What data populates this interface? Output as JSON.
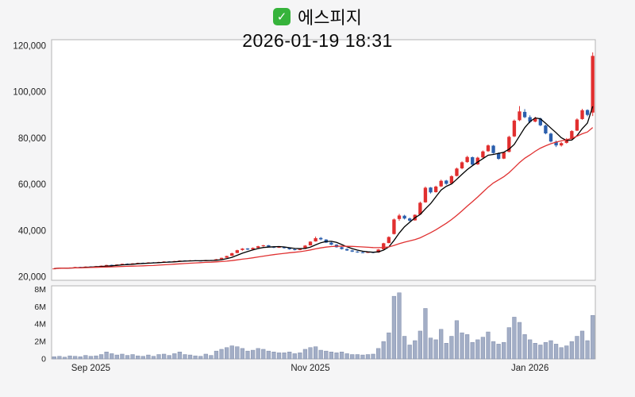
{
  "header": {
    "title": "에스피지",
    "datetime": "2026-01-19 18:31",
    "check_glyph": "✓"
  },
  "colors": {
    "background": "#f5f5f6",
    "panel_background": "#ffffff",
    "panel_border": "#b4b4b4",
    "check_green": "#36b33b",
    "axis_text": "#222222"
  },
  "chart_data": {
    "type": "candlestick",
    "title": "에스피지",
    "subtitle": "2026-01-19 18:31",
    "x_tick_labels": [
      {
        "label": "Sep 2025",
        "index": 7
      },
      {
        "label": "Nov 2025",
        "index": 49
      },
      {
        "label": "Jan 2026",
        "index": 91
      }
    ],
    "price_axis": {
      "ticks": [
        20000,
        40000,
        60000,
        80000,
        100000,
        120000
      ],
      "min": 18500,
      "max": 122500
    },
    "volume_axis": {
      "ticks": [
        0,
        2000000,
        4000000,
        6000000,
        8000000
      ],
      "tick_labels": [
        "0",
        "2M",
        "4M",
        "6M",
        "8M"
      ],
      "min": 0,
      "max": 8400000
    },
    "moving_averages": [
      {
        "name": "ma-short",
        "window": 5,
        "color": "#000000"
      },
      {
        "name": "ma-long",
        "window": 20,
        "color": "#e03131"
      }
    ],
    "up_color": "#e12f2f",
    "down_color": "#2b5fad",
    "volume_color": "#a3aec6",
    "volume_edge_color": "#7f8cab",
    "legend_position": "none",
    "grid": false,
    "ohlc": [
      [
        23400,
        23700,
        23300,
        23600
      ],
      [
        23600,
        23900,
        23500,
        23800
      ],
      [
        23850,
        23950,
        23600,
        23700
      ],
      [
        23700,
        24100,
        23650,
        24000
      ],
      [
        24050,
        24300,
        23900,
        24200
      ],
      [
        24250,
        24350,
        24000,
        24100
      ],
      [
        24100,
        24500,
        24050,
        24400
      ],
      [
        24450,
        24550,
        24200,
        24300
      ],
      [
        24300,
        24700,
        24250,
        24600
      ],
      [
        24650,
        24900,
        24500,
        24800
      ],
      [
        24850,
        25200,
        24700,
        25100
      ],
      [
        25150,
        25250,
        24900,
        25000
      ],
      [
        25000,
        25400,
        24950,
        25300
      ],
      [
        25350,
        25700,
        25200,
        25600
      ],
      [
        25650,
        25750,
        25400,
        25500
      ],
      [
        25500,
        25900,
        25450,
        25800
      ],
      [
        25850,
        26100,
        25700,
        26000
      ],
      [
        26050,
        26150,
        25800,
        25900
      ],
      [
        25900,
        26300,
        25850,
        26200
      ],
      [
        26250,
        26350,
        26000,
        26100
      ],
      [
        26100,
        26500,
        26050,
        26400
      ],
      [
        26450,
        26700,
        26300,
        26600
      ],
      [
        26650,
        26750,
        26400,
        26500
      ],
      [
        26500,
        26900,
        26450,
        26800
      ],
      [
        26850,
        27100,
        26700,
        27000
      ],
      [
        27050,
        27150,
        26800,
        26900
      ],
      [
        26900,
        27250,
        26850,
        27100
      ],
      [
        27100,
        27200,
        26900,
        27000
      ],
      [
        27000,
        27100,
        26700,
        26800
      ],
      [
        26800,
        27300,
        26750,
        27200
      ],
      [
        27250,
        27350,
        27000,
        27100
      ],
      [
        27150,
        27700,
        27100,
        27600
      ],
      [
        27650,
        28300,
        27600,
        28200
      ],
      [
        28250,
        29100,
        28200,
        29000
      ],
      [
        29100,
        30400,
        29000,
        30200
      ],
      [
        30300,
        31700,
        30200,
        31500
      ],
      [
        31600,
        32400,
        31300,
        32200
      ],
      [
        32250,
        32400,
        31600,
        31800
      ],
      [
        31850,
        32700,
        31800,
        32500
      ],
      [
        32550,
        33400,
        32400,
        33200
      ],
      [
        33250,
        33800,
        33000,
        33600
      ],
      [
        33650,
        33750,
        32900,
        33100
      ],
      [
        33100,
        33250,
        32400,
        32600
      ],
      [
        32600,
        33100,
        32500,
        32900
      ],
      [
        32900,
        33000,
        32200,
        32400
      ],
      [
        32400,
        32550,
        31700,
        31900
      ],
      [
        31900,
        32100,
        31400,
        31600
      ],
      [
        31600,
        32200,
        31500,
        32000
      ],
      [
        32100,
        33700,
        32000,
        33500
      ],
      [
        33600,
        35400,
        33500,
        35200
      ],
      [
        35300,
        37400,
        35200,
        36700
      ],
      [
        36800,
        37200,
        35800,
        36200
      ],
      [
        36100,
        36300,
        34600,
        34800
      ],
      [
        34800,
        35100,
        33700,
        33900
      ],
      [
        33900,
        34100,
        32600,
        32800
      ],
      [
        32800,
        33000,
        31800,
        32000
      ],
      [
        32000,
        32300,
        31200,
        31400
      ],
      [
        31400,
        31700,
        30700,
        30900
      ],
      [
        30900,
        31100,
        30400,
        30600
      ],
      [
        30600,
        30900,
        30200,
        30400
      ],
      [
        30400,
        30900,
        30300,
        30700
      ],
      [
        30700,
        30800,
        30200,
        30400
      ],
      [
        30500,
        32000,
        30400,
        31800
      ],
      [
        31900,
        34700,
        31800,
        34500
      ],
      [
        34600,
        37500,
        34500,
        37200
      ],
      [
        38500,
        45200,
        38300,
        44800
      ],
      [
        45000,
        47200,
        44200,
        46500
      ],
      [
        46400,
        46800,
        44800,
        45200
      ],
      [
        45200,
        45600,
        43900,
        44300
      ],
      [
        44400,
        47000,
        44300,
        46800
      ],
      [
        47000,
        52500,
        46800,
        52000
      ],
      [
        52200,
        59000,
        52000,
        58500
      ],
      [
        58600,
        58800,
        56000,
        56500
      ],
      [
        56600,
        59400,
        56400,
        59000
      ],
      [
        59100,
        62000,
        58800,
        61500
      ],
      [
        61600,
        61900,
        59800,
        60200
      ],
      [
        60300,
        63900,
        60200,
        63500
      ],
      [
        63600,
        67200,
        63400,
        66800
      ],
      [
        66900,
        69900,
        66500,
        69500
      ],
      [
        69600,
        72300,
        69300,
        71800
      ],
      [
        71700,
        72000,
        68200,
        68500
      ],
      [
        68600,
        71900,
        68400,
        71500
      ],
      [
        71600,
        74600,
        71300,
        74200
      ],
      [
        74300,
        77200,
        74000,
        76800
      ],
      [
        76700,
        77000,
        73200,
        73500
      ],
      [
        73400,
        73800,
        70600,
        71000
      ],
      [
        71100,
        74100,
        70900,
        73800
      ],
      [
        74000,
        81000,
        73800,
        80500
      ],
      [
        80700,
        88000,
        80400,
        87500
      ],
      [
        87700,
        93800,
        87300,
        91500
      ],
      [
        91300,
        92500,
        88600,
        89000
      ],
      [
        89000,
        89800,
        86400,
        87000
      ],
      [
        87100,
        89200,
        86800,
        88500
      ],
      [
        88400,
        88800,
        85100,
        85500
      ],
      [
        85400,
        85800,
        81600,
        82000
      ],
      [
        81900,
        82300,
        78100,
        78500
      ],
      [
        78400,
        78900,
        76100,
        76800
      ],
      [
        76800,
        78300,
        76300,
        77800
      ],
      [
        77900,
        80000,
        77600,
        79500
      ],
      [
        79600,
        83400,
        79400,
        83000
      ],
      [
        83200,
        88500,
        83000,
        88000
      ],
      [
        88200,
        92600,
        87900,
        92000
      ],
      [
        92100,
        92400,
        89400,
        90000
      ],
      [
        91000,
        117000,
        89500,
        115500
      ]
    ],
    "volume": [
      250000,
      300000,
      200000,
      350000,
      300000,
      250000,
      400000,
      300000,
      350000,
      500000,
      800000,
      600000,
      450000,
      550000,
      400000,
      500000,
      350000,
      300000,
      450000,
      300000,
      500000,
      550000,
      400000,
      600000,
      800000,
      500000,
      450000,
      350000,
      300000,
      550000,
      400000,
      900000,
      1100000,
      1300000,
      1500000,
      1400000,
      1200000,
      900000,
      1000000,
      1200000,
      1100000,
      900000,
      800000,
      700000,
      700000,
      800000,
      600000,
      700000,
      1100000,
      1300000,
      1400000,
      1000000,
      900000,
      800000,
      700000,
      800000,
      600000,
      500000,
      500000,
      450000,
      500000,
      550000,
      1200000,
      2000000,
      3000000,
      7200000,
      7600000,
      2600000,
      1600000,
      2100000,
      3200000,
      5800000,
      2400000,
      2200000,
      3400000,
      1800000,
      2600000,
      4400000,
      3000000,
      2800000,
      1900000,
      2200000,
      2500000,
      3100000,
      2000000,
      1700000,
      1900000,
      3600000,
      4800000,
      4200000,
      2800000,
      2200000,
      1800000,
      1600000,
      1900000,
      2100000,
      1700000,
      1300000,
      1500000,
      2000000,
      2600000,
      3200000,
      2100000,
      5000000
    ]
  }
}
